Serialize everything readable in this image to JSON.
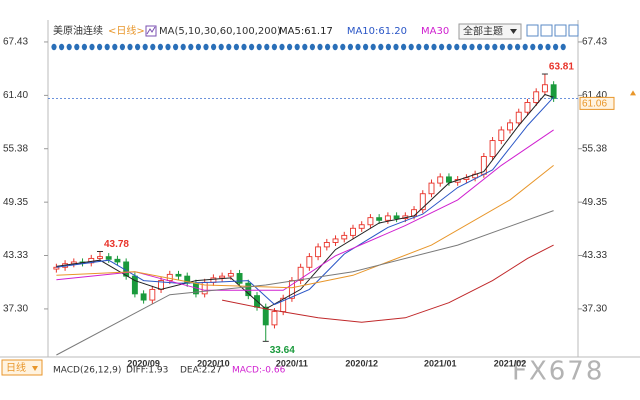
{
  "header": {
    "title": "美原油连续",
    "period": "<日线>",
    "indicator": "MA(5,10,30,60,100,200)",
    "theme_button": "全部主题"
  },
  "chart_data": {
    "type": "candlestick",
    "categories": [
      null,
      null,
      null,
      null,
      null,
      null,
      null,
      null,
      null,
      null,
      "2020/09",
      null,
      null,
      null,
      null,
      null,
      null,
      null,
      "2020/10",
      null,
      null,
      null,
      null,
      null,
      null,
      null,
      null,
      "2020/11",
      null,
      null,
      null,
      null,
      null,
      null,
      null,
      "2020/12",
      null,
      null,
      null,
      null,
      null,
      null,
      null,
      null,
      "2021/01",
      null,
      null,
      null,
      null,
      null,
      null,
      null,
      "2021/02",
      null,
      null,
      null,
      null,
      null
    ],
    "open": [
      41.8,
      42.0,
      42.4,
      42.6,
      42.5,
      43.0,
      43.2,
      42.9,
      42.6,
      41.0,
      39.0,
      38.3,
      39.5,
      40.5,
      41.2,
      41.0,
      40.2,
      39.0,
      40.3,
      40.8,
      41.0,
      41.3,
      40.2,
      38.8,
      37.5,
      35.5,
      37.0,
      38.5,
      40.5,
      42.0,
      43.2,
      44.3,
      44.8,
      45.2,
      45.6,
      46.4,
      46.8,
      47.6,
      47.3,
      47.8,
      47.5,
      47.8,
      48.5,
      50.3,
      51.5,
      52.2,
      51.6,
      51.9,
      52.1,
      52.5,
      54.5,
      56.3,
      57.5,
      58.3,
      59.5,
      60.6,
      61.8,
      62.6
    ],
    "high": [
      42.4,
      42.8,
      43.0,
      43.0,
      43.4,
      43.78,
      43.6,
      43.3,
      43.0,
      41.4,
      39.4,
      39.9,
      40.9,
      41.6,
      41.6,
      41.4,
      40.6,
      40.7,
      41.2,
      41.4,
      41.7,
      41.7,
      40.6,
      39.2,
      37.9,
      37.4,
      38.9,
      40.9,
      42.4,
      43.6,
      44.7,
      45.2,
      45.6,
      46.0,
      46.8,
      47.2,
      48.0,
      48.0,
      48.2,
      48.2,
      48.2,
      48.9,
      50.7,
      51.9,
      52.6,
      52.6,
      52.3,
      52.5,
      52.9,
      54.9,
      56.7,
      57.9,
      58.7,
      59.9,
      61.0,
      62.2,
      63.81,
      63.0
    ],
    "low": [
      41.4,
      41.6,
      42.0,
      42.1,
      42.1,
      42.6,
      42.5,
      42.2,
      40.6,
      38.6,
      37.9,
      37.9,
      39.1,
      40.1,
      40.6,
      39.8,
      38.6,
      38.6,
      39.9,
      40.4,
      40.6,
      39.8,
      38.4,
      37.1,
      33.64,
      35.1,
      36.6,
      38.1,
      40.1,
      41.6,
      42.8,
      43.9,
      44.4,
      44.8,
      45.2,
      46.0,
      46.4,
      46.9,
      46.9,
      47.1,
      47.1,
      47.4,
      48.1,
      49.9,
      51.1,
      51.2,
      51.2,
      51.5,
      51.7,
      52.1,
      54.1,
      55.9,
      57.1,
      57.9,
      59.1,
      60.2,
      61.4,
      60.66
    ],
    "close": [
      42.0,
      42.4,
      42.6,
      42.5,
      43.0,
      43.2,
      42.9,
      42.6,
      41.0,
      39.0,
      38.3,
      39.5,
      40.5,
      41.2,
      41.0,
      40.2,
      39.0,
      40.3,
      40.8,
      41.0,
      41.3,
      40.2,
      38.8,
      37.5,
      35.5,
      37.0,
      38.5,
      40.5,
      42.0,
      43.2,
      44.3,
      44.8,
      45.2,
      45.6,
      46.4,
      46.8,
      47.6,
      47.3,
      47.8,
      47.5,
      47.8,
      48.5,
      50.3,
      51.5,
      52.2,
      51.6,
      51.9,
      52.1,
      52.5,
      54.5,
      56.3,
      57.5,
      58.3,
      59.5,
      60.6,
      61.8,
      62.6,
      61.06
    ],
    "up_color": "#e8332a",
    "down_color": "#1a9a3c",
    "ylim": [
      32.1,
      67.65
    ],
    "yticks": [
      {
        "value": 37.3,
        "label": "37.30"
      },
      43.33,
      49.35,
      55.38,
      {
        "value": 61.4,
        "label": "61.40"
      },
      67.43
    ],
    "last_price": 61.06,
    "lines": [
      {
        "name": "MA5",
        "label": "MA5:61.17",
        "color": "#222222",
        "x": [
          0,
          5,
          9,
          12,
          16,
          20,
          24,
          28,
          32,
          37,
          41,
          45,
          49,
          53,
          56,
          57
        ],
        "values": [
          42.1,
          42.8,
          40.5,
          39.5,
          40.5,
          40.8,
          37.3,
          39.5,
          44.0,
          47.0,
          47.8,
          51.5,
          52.8,
          58.0,
          61.5,
          61.17
        ]
      },
      {
        "name": "MA10",
        "label": "MA10:61.20",
        "color": "#2a56c6",
        "x": [
          0,
          6,
          10,
          14,
          18,
          22,
          25,
          29,
          33,
          38,
          42,
          46,
          50,
          54,
          57
        ],
        "values": [
          42.0,
          42.8,
          40.5,
          40.2,
          40.3,
          40.5,
          37.8,
          39.5,
          43.5,
          46.5,
          48.0,
          51.0,
          53.0,
          58.0,
          61.2
        ]
      },
      {
        "name": "MA30",
        "label": "MA30",
        "color": "#d020d0",
        "x": [
          0,
          9,
          17,
          26,
          32,
          40,
          46,
          51,
          57
        ],
        "values": [
          40.6,
          41.5,
          39.4,
          39.4,
          43.3,
          46.7,
          49.6,
          53.5,
          57.5
        ]
      },
      {
        "color": "#e8962a",
        "x": [
          0,
          9,
          17,
          27,
          34,
          43,
          52,
          57
        ],
        "values": [
          41.1,
          41.5,
          40.0,
          39.7,
          41.1,
          44.5,
          49.6,
          53.5
        ]
      },
      {
        "color": "#7a7a7a",
        "x": [
          0,
          13,
          24,
          34,
          46,
          57
        ],
        "values": [
          32.1,
          38.9,
          40.0,
          41.5,
          44.5,
          48.4
        ]
      },
      {
        "color": "#c0282a",
        "x": [
          19,
          24,
          30,
          35,
          40,
          45,
          50,
          54,
          57
        ],
        "values": [
          38.3,
          37.3,
          36.3,
          35.8,
          36.3,
          38.0,
          40.5,
          43.0,
          44.5
        ]
      }
    ]
  },
  "footer": {
    "period": "日线",
    "macd": "MACD(26,12,9)",
    "diff": "DIFF:1.93",
    "dea": "DEA:2.27",
    "macd_value": "MACD:-0.66"
  },
  "watermark": "FX678"
}
